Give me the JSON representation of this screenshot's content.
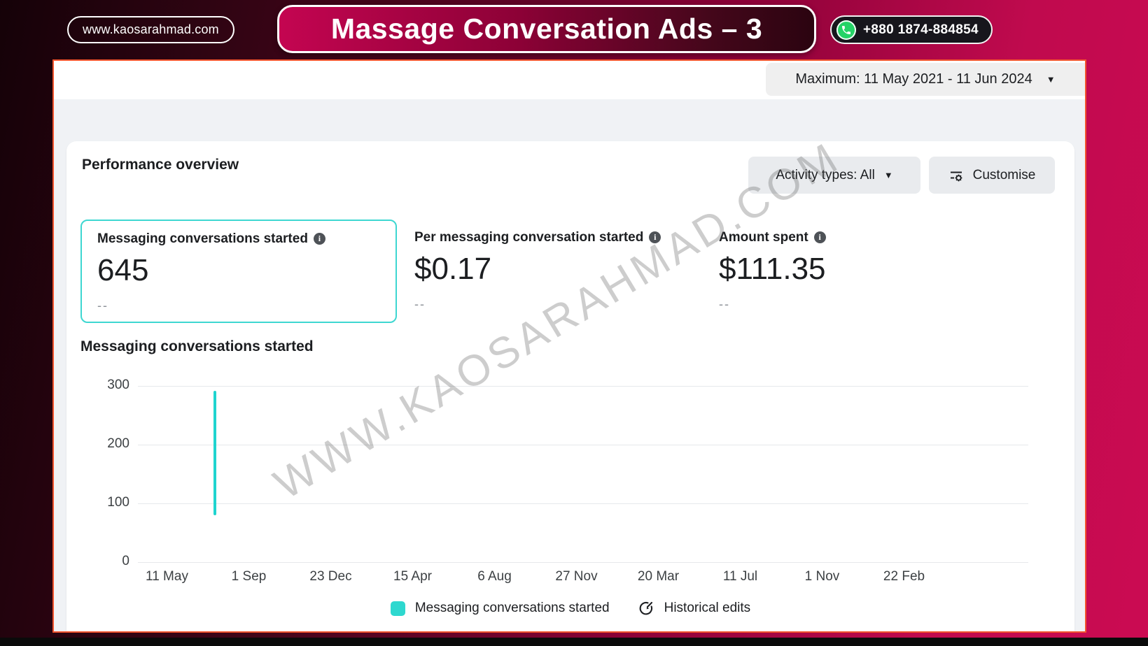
{
  "banner": {
    "website": "www.kaosarahmad.com",
    "title": "Massage Conversation Ads – 3",
    "phone": "+880 1874-884854",
    "colors": {
      "pink": "#c5084f",
      "dark": "#150208",
      "whatsapp_green": "#25d366",
      "frame_border": "#f2552e"
    }
  },
  "toolbar": {
    "date_range": "Maximum: 11 May 2021 - 11 Jun 2024"
  },
  "performance": {
    "heading": "Performance overview",
    "activity_button_label": "Activity types: All",
    "customise_button_label": "Customise",
    "metrics": [
      {
        "label": "Messaging conversations started",
        "value": "645",
        "sub": "--",
        "selected": true
      },
      {
        "label": "Per messaging conversation started",
        "value": "$0.17",
        "sub": "--",
        "selected": false
      },
      {
        "label": "Amount spent",
        "value": "$111.35",
        "sub": "--",
        "selected": false
      }
    ]
  },
  "chart_data": {
    "type": "line",
    "title": "Messaging conversations started",
    "xlabel": "",
    "ylabel": "",
    "ylim": [
      0,
      300
    ],
    "y_tick_labels": [
      "300",
      "200",
      "100",
      "0"
    ],
    "x_tick_labels": [
      "11 May",
      "1 Sep",
      "23 Dec",
      "15 Apr",
      "6 Aug",
      "27 Nov",
      "20 Mar",
      "11 Jul",
      "1 Nov",
      "22 Feb"
    ],
    "x_range": [
      "11 May 2021",
      "11 Jun 2024"
    ],
    "grid": true,
    "legend_position": "bottom",
    "series": [
      {
        "name": "Messaging conversations started",
        "color": "#1fd4cf",
        "shape": "single vertical spike shortly after 11 May 2021; flat/zero elsewhere",
        "spike": {
          "x_frac": 0.085,
          "y_visible_from": 80,
          "y_peak": 292
        }
      }
    ],
    "legend_labels": [
      "Messaging conversations started",
      "Historical edits"
    ]
  },
  "icons": {
    "caret": "▼",
    "info": "i"
  },
  "watermark": {
    "text": "WWW.KAOSARAHMAD.COM"
  }
}
